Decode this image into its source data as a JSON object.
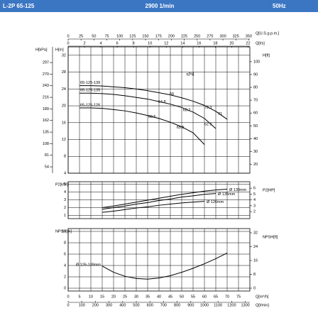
{
  "header": {
    "model": "L-2P 65-125",
    "speed": "2900 1/min",
    "frequency": "50Hz"
  },
  "chart_data": [
    {
      "type": "line",
      "xlim": [
        0,
        80
      ],
      "xticks": [
        0,
        5,
        10,
        15,
        20,
        25,
        30,
        35,
        40,
        45,
        50,
        55,
        60,
        65,
        70,
        75
      ],
      "ylabel": "H[m]",
      "ylim": [
        4,
        34
      ],
      "yticks": [
        4,
        8,
        12,
        16,
        20,
        24,
        28,
        32
      ],
      "y_outer": {
        "label": "H[kPa]",
        "lim": [
          39.24,
          333.54
        ],
        "ticks": [
          54,
          81,
          108,
          135,
          162,
          189,
          216,
          243,
          270,
          297
        ]
      },
      "y2label": "H[ft]",
      "y2lim": [
        13.12,
        111.55
      ],
      "y2ticks": [
        20,
        30,
        40,
        50,
        60,
        70,
        80,
        90,
        100
      ],
      "top_x_axes": [
        {
          "label": "Q[U.S.g.p.m.]",
          "lim": [
            0,
            352.2
          ],
          "ticks": [
            0,
            25,
            50,
            75,
            100,
            125,
            150,
            175,
            200,
            225,
            250,
            275,
            300,
            325,
            350
          ]
        },
        {
          "label": "Q[l/s]",
          "lim": [
            0,
            22.22
          ],
          "ticks": [
            0,
            2,
            4,
            6,
            8,
            10,
            12,
            14,
            16,
            18,
            20,
            22
          ]
        }
      ],
      "x": [
        5,
        10,
        15,
        20,
        25,
        30,
        35,
        40,
        45,
        50,
        55,
        60,
        65,
        70
      ],
      "series": [
        {
          "name": "65-125-139",
          "color": "#000000",
          "values": [
            24.8,
            24.8,
            24.7,
            24.5,
            24.3,
            24.0,
            23.6,
            23.1,
            22.6,
            21.9,
            21.1,
            20.1,
            18.7,
            16.8
          ]
        },
        {
          "name": "65-125-135",
          "color": "#000000",
          "values": [
            23.0,
            23.0,
            22.9,
            22.7,
            22.4,
            22.0,
            21.6,
            21.0,
            20.4,
            19.6,
            18.5,
            17.0,
            14.6,
            null
          ]
        },
        {
          "name": "65-125-126",
          "color": "#000000",
          "values": [
            19.5,
            19.5,
            19.4,
            19.1,
            18.8,
            18.3,
            17.7,
            17.0,
            16.1,
            15.0,
            13.6,
            10.8,
            null,
            null
          ]
        }
      ],
      "efficiency_label": "η[%]",
      "efficiency_points": [
        {
          "value": 59,
          "x": 45.6,
          "y": 22.8
        },
        {
          "value": 64.8,
          "x": 41.3,
          "y": 20.9
        },
        {
          "value": 68.2,
          "x": 52.2,
          "y": 19.0
        },
        {
          "value": 72.3,
          "x": 61.6,
          "y": 19.6
        },
        {
          "value": 71,
          "x": 66.9,
          "y": 18.1
        },
        {
          "value": 60.5,
          "x": 36.9,
          "y": 17.4
        },
        {
          "value": 65.5,
          "x": 49.4,
          "y": 14.9
        },
        {
          "value": 62.9,
          "x": 61.6,
          "y": 15.6
        }
      ]
    },
    {
      "type": "line",
      "xlim": [
        0,
        80
      ],
      "xticks": [
        0,
        5,
        10,
        15,
        20,
        25,
        30,
        35,
        40,
        45,
        50,
        55,
        60,
        65,
        70,
        75
      ],
      "ylabel": "P2[kW]",
      "ylim": [
        0.6,
        5.3
      ],
      "yticks": [
        1,
        2,
        3,
        4,
        5
      ],
      "y2label": "P2[HP]",
      "y2lim": [
        0.8,
        7.11
      ],
      "y2ticks": [
        2,
        3,
        4,
        5,
        6
      ],
      "x": [
        15,
        20,
        25,
        30,
        35,
        40,
        45,
        50,
        55,
        60,
        65,
        70
      ],
      "series": [
        {
          "name": "Ø 139mm",
          "color": "#000000",
          "values": [
            2.0,
            2.2,
            2.45,
            2.7,
            2.95,
            3.2,
            3.45,
            3.7,
            3.9,
            4.1,
            4.25,
            4.35
          ]
        },
        {
          "name": "Ø 135mm",
          "color": "#000000",
          "values": [
            1.8,
            2.0,
            2.2,
            2.45,
            2.65,
            2.9,
            3.1,
            3.35,
            3.5,
            3.7,
            3.8,
            null
          ]
        },
        {
          "name": "Ø 126mm",
          "color": "#000000",
          "values": [
            1.4,
            1.55,
            1.75,
            1.95,
            2.1,
            2.3,
            2.45,
            2.6,
            2.7,
            2.8,
            null,
            null
          ]
        }
      ]
    },
    {
      "type": "line",
      "xlim": [
        0,
        80
      ],
      "xticks": [
        0,
        5,
        10,
        15,
        20,
        25,
        30,
        35,
        40,
        45,
        50,
        55,
        60,
        65,
        70,
        75
      ],
      "xlabel": "Q[m³/h]",
      "ylabel": "NPSH[m]",
      "ylim": [
        -0.5,
        10.5
      ],
      "yticks": [
        0,
        2,
        4,
        6,
        8,
        10
      ],
      "y2label": "NPSH[ft]",
      "y2lim": [
        -1.64,
        34.45
      ],
      "y2ticks": [
        0,
        8,
        16,
        24,
        32
      ],
      "bottom_x_axes": [
        {
          "label": "Q[l/min]",
          "lim": [
            0,
            1333.3
          ],
          "ticks": [
            0,
            100,
            200,
            300,
            400,
            500,
            600,
            700,
            800,
            900,
            1000,
            1100,
            1200,
            1300
          ]
        }
      ],
      "x": [
        15,
        20,
        25,
        30,
        35,
        40,
        45,
        50,
        55,
        60,
        65,
        70
      ],
      "series": [
        {
          "name": "Ø 126-139mm",
          "color": "#000000",
          "values": [
            3.9,
            2.8,
            2.1,
            1.7,
            1.6,
            1.8,
            2.2,
            2.8,
            3.5,
            4.3,
            5.2,
            6.2
          ]
        }
      ]
    }
  ]
}
